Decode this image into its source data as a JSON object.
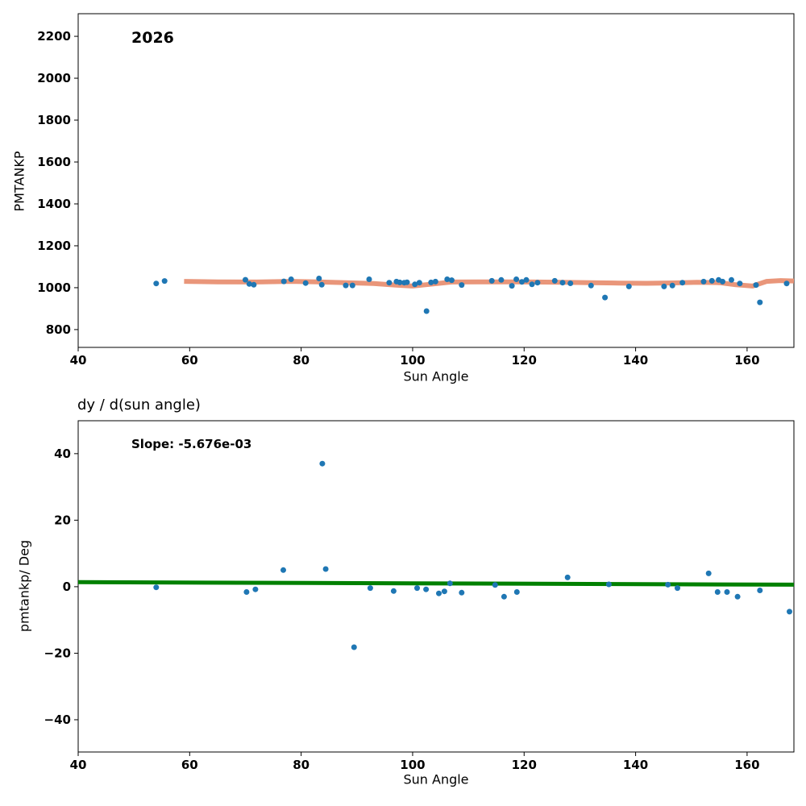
{
  "figure": {
    "background": "#ffffff",
    "colors": {
      "scatter": "#1f77b4",
      "trend": "#e9967a",
      "fit": "#008000",
      "axis": "#000000"
    }
  },
  "chart_data": [
    {
      "type": "scatter",
      "title": "",
      "annotation": "2026",
      "xlabel": "Sun Angle",
      "ylabel": "PMTANKP",
      "xlim": [
        40,
        168.4
      ],
      "ylim": [
        715,
        2308
      ],
      "xticks": [
        40,
        60,
        80,
        100,
        120,
        140,
        160
      ],
      "yticks": [
        800,
        1000,
        1200,
        1400,
        1600,
        1800,
        2000,
        2200
      ],
      "grid": false,
      "legend": "none",
      "scatter": {
        "x": [
          54,
          55.5,
          70,
          70.7,
          71.5,
          76.9,
          78.2,
          80.8,
          83.2,
          83.7,
          88,
          89.2,
          92.2,
          95.8,
          97.1,
          97.7,
          98.5,
          99,
          100.4,
          101.2,
          102.5,
          103.3,
          104.1,
          106.2,
          107,
          108.8,
          114.2,
          115.9,
          117.8,
          118.6,
          119.6,
          120.4,
          121.4,
          122.4,
          125.5,
          126.9,
          128.3,
          132,
          134.5,
          138.8,
          145.1,
          146.6,
          148.4,
          152.2,
          153.7,
          154.9,
          155.6,
          157.2,
          158.7,
          161.6,
          162.3,
          167.1
        ],
        "y": [
          1020,
          1032,
          1038,
          1018,
          1014,
          1030,
          1040,
          1022,
          1044,
          1014,
          1011,
          1011,
          1040,
          1024,
          1029,
          1025,
          1024,
          1026,
          1016,
          1024,
          888,
          1025,
          1029,
          1040,
          1036,
          1013,
          1033,
          1037,
          1009,
          1040,
          1028,
          1037,
          1016,
          1024,
          1033,
          1024,
          1021,
          1010,
          953,
          1006,
          1006,
          1010,
          1024,
          1029,
          1033,
          1037,
          1029,
          1037,
          1020,
          1013,
          930,
          1020
        ]
      },
      "trend_line": {
        "x": [
          59,
          65,
          72,
          78,
          83,
          88,
          93,
          97,
          100,
          103,
          107,
          112,
          117,
          122,
          127,
          132,
          137,
          142,
          147,
          151,
          155,
          158,
          161,
          163.5,
          166,
          168.4
        ],
        "y": [
          1030,
          1028,
          1027,
          1030,
          1028,
          1024,
          1020,
          1012,
          1008,
          1016,
          1027,
          1028,
          1028,
          1027,
          1026,
          1024,
          1022,
          1021,
          1023,
          1026,
          1024,
          1014,
          1008,
          1030,
          1034,
          1032
        ]
      }
    },
    {
      "type": "scatter",
      "title": "dy / d(sun angle)",
      "annotation": "Slope: -5.676e-03",
      "xlabel": "Sun Angle",
      "ylabel": "pmtankp/ Deg",
      "xlim": [
        40,
        168.4
      ],
      "ylim": [
        -49.7,
        49.9
      ],
      "xticks": [
        40,
        60,
        80,
        100,
        120,
        140,
        160
      ],
      "yticks": [
        -40,
        -20,
        0,
        20,
        40
      ],
      "grid": false,
      "legend": "none",
      "scatter": {
        "x": [
          54,
          70.2,
          71.8,
          76.8,
          83.8,
          84.4,
          89.5,
          92.4,
          96.6,
          100.8,
          102.4,
          104.7,
          105.7,
          106.7,
          108.8,
          114.8,
          116.4,
          118.7,
          127.8,
          135.2,
          145.8,
          147.5,
          153.1,
          154.7,
          156.4,
          158.3,
          162.3,
          167.6
        ],
        "y": [
          -0.2,
          -1.6,
          -0.8,
          5.0,
          37.0,
          5.3,
          -18.2,
          -0.4,
          -1.3,
          -0.4,
          -0.8,
          -2.0,
          -1.4,
          1.0,
          -1.8,
          0.5,
          -3.0,
          -1.6,
          2.8,
          0.7,
          0.6,
          -0.4,
          4.0,
          -1.6,
          -1.6,
          -3.0,
          -1.1,
          -7.5
        ]
      },
      "fit_line": {
        "x": [
          40,
          168.4
        ],
        "y": [
          1.35,
          0.62
        ]
      }
    }
  ]
}
